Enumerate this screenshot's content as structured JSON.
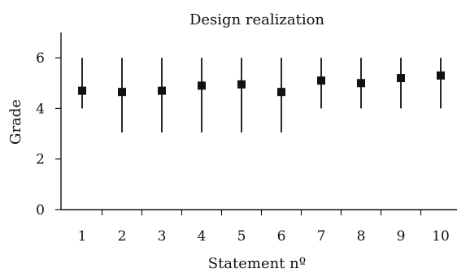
{
  "chart_data": {
    "type": "scatter",
    "title": "Design realization",
    "xlabel": "Statement nº",
    "ylabel": "Grade",
    "categories": [
      "1",
      "2",
      "3",
      "4",
      "5",
      "6",
      "7",
      "8",
      "9",
      "10"
    ],
    "series": [
      {
        "values": [
          4.7,
          4.65,
          4.7,
          4.9,
          4.95,
          4.65,
          5.1,
          5.0,
          5.2,
          5.3
        ],
        "min": [
          4,
          3.05,
          3.05,
          3.05,
          3.05,
          3.05,
          4,
          4,
          4,
          4
        ],
        "max": [
          6,
          6,
          6,
          6,
          6,
          6,
          6,
          6,
          6,
          6
        ]
      }
    ],
    "ylim": [
      0,
      7
    ],
    "yticks": [
      0,
      2,
      4,
      6
    ],
    "grid": false,
    "colors": {
      "marker": "#111111",
      "axis": "#111111"
    }
  }
}
